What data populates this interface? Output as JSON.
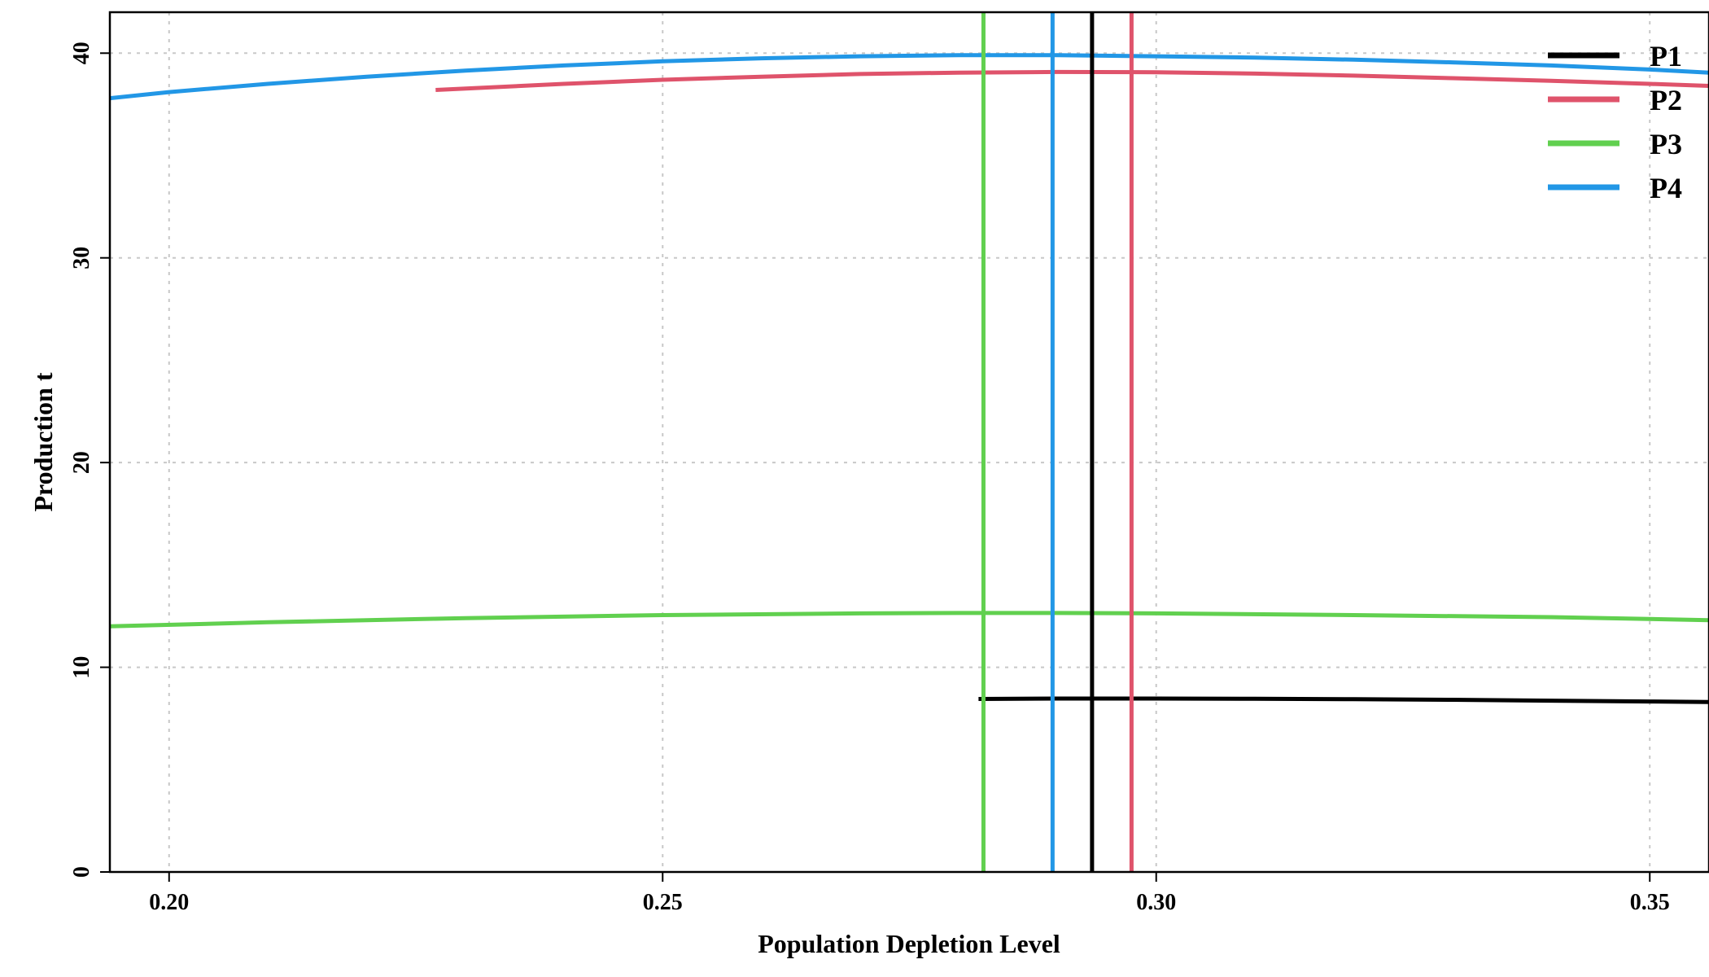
{
  "chart_data": {
    "type": "line",
    "title": "",
    "xlabel": "Population Depletion Level",
    "ylabel": "Production t",
    "xlim": [
      0.194,
      0.356
    ],
    "ylim": [
      0,
      42
    ],
    "x_ticks": [
      {
        "value": 0.2,
        "label": "0.20"
      },
      {
        "value": 0.25,
        "label": "0.25"
      },
      {
        "value": 0.3,
        "label": "0.30"
      },
      {
        "value": 0.35,
        "label": "0.35"
      }
    ],
    "y_ticks": [
      {
        "value": 0,
        "label": "0"
      },
      {
        "value": 10,
        "label": "10"
      },
      {
        "value": 20,
        "label": "20"
      },
      {
        "value": 30,
        "label": "30"
      },
      {
        "value": 40,
        "label": "40"
      }
    ],
    "grid": true,
    "legend_position": "top-right",
    "series": [
      {
        "name": "P1",
        "color": "#000000",
        "x": [
          0.282,
          0.29,
          0.3,
          0.31,
          0.32,
          0.33,
          0.34,
          0.35,
          0.356
        ],
        "y": [
          8.45,
          8.47,
          8.47,
          8.46,
          8.44,
          8.41,
          8.37,
          8.33,
          8.3
        ],
        "vline": 0.2935
      },
      {
        "name": "P2",
        "color": "#DF536B",
        "x": [
          0.227,
          0.24,
          0.25,
          0.26,
          0.27,
          0.28,
          0.29,
          0.3,
          0.31,
          0.32,
          0.33,
          0.34,
          0.35,
          0.356
        ],
        "y": [
          38.2,
          38.5,
          38.7,
          38.85,
          38.98,
          39.05,
          39.08,
          39.07,
          39.0,
          38.9,
          38.78,
          38.65,
          38.5,
          38.4
        ],
        "vline": 0.2975
      },
      {
        "name": "P3",
        "color": "#61D04F",
        "x": [
          0.194,
          0.21,
          0.23,
          0.25,
          0.27,
          0.28,
          0.29,
          0.3,
          0.32,
          0.34,
          0.356
        ],
        "y": [
          12.0,
          12.2,
          12.4,
          12.55,
          12.63,
          12.65,
          12.65,
          12.63,
          12.55,
          12.45,
          12.3
        ],
        "vline": 0.2825
      },
      {
        "name": "P4",
        "color": "#2297E6",
        "x": [
          0.194,
          0.2,
          0.21,
          0.22,
          0.23,
          0.24,
          0.25,
          0.26,
          0.27,
          0.28,
          0.29,
          0.3,
          0.31,
          0.32,
          0.33,
          0.34,
          0.35,
          0.356
        ],
        "y": [
          37.8,
          38.1,
          38.5,
          38.85,
          39.15,
          39.4,
          39.6,
          39.75,
          39.85,
          39.9,
          39.9,
          39.85,
          39.78,
          39.68,
          39.55,
          39.4,
          39.2,
          39.05
        ],
        "vline": 0.2895
      }
    ]
  }
}
